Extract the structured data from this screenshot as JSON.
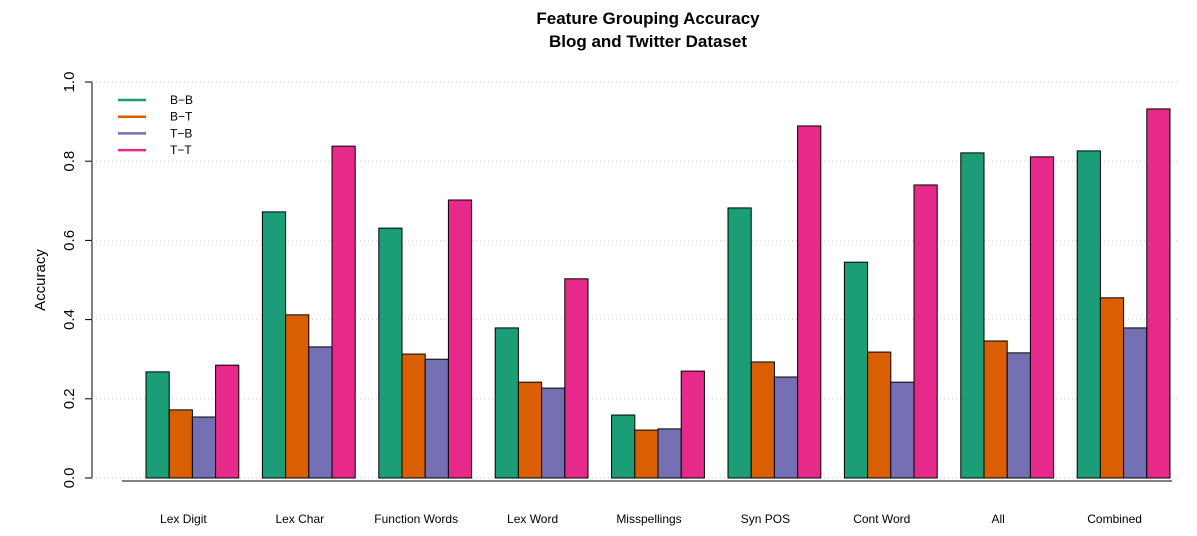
{
  "chart_data": {
    "type": "bar",
    "title": "Feature Grouping Accuracy",
    "subtitle": "Blog and Twitter Dataset",
    "y_label": "Accuracy",
    "categories": [
      "Lex Digit",
      "Lex Char",
      "Function Words",
      "Lex Word",
      "Misspellings",
      "Syn POS",
      "Cont Word",
      "All",
      "Combined"
    ],
    "series": [
      {
        "name": "B−B",
        "color": "#1b9e77",
        "values": [
          0.268,
          0.672,
          0.631,
          0.379,
          0.159,
          0.682,
          0.545,
          0.821,
          0.826
        ]
      },
      {
        "name": "B−T",
        "color": "#d95f02",
        "values": [
          0.172,
          0.412,
          0.313,
          0.242,
          0.121,
          0.293,
          0.318,
          0.346,
          0.455
        ]
      },
      {
        "name": "T−B",
        "color": "#7570b3",
        "values": [
          0.154,
          0.331,
          0.3,
          0.227,
          0.124,
          0.255,
          0.242,
          0.316,
          0.379
        ]
      },
      {
        "name": "T−T",
        "color": "#e7298a",
        "values": [
          0.285,
          0.838,
          0.702,
          0.503,
          0.27,
          0.889,
          0.74,
          0.811,
          0.932
        ]
      }
    ],
    "ylim": [
      0,
      1
    ],
    "yticks": [
      {
        "value": 0,
        "label": "0.0"
      },
      0.2,
      0.4,
      0.6,
      0.8,
      {
        "value": 1,
        "label": "1.0"
      }
    ],
    "grid": true,
    "legend": "top-left"
  }
}
